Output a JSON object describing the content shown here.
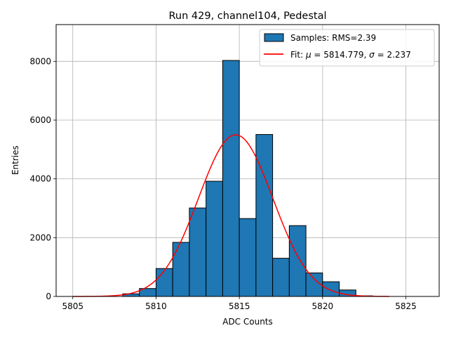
{
  "chart_data": {
    "type": "bar",
    "title": "Run 429, channel104, Pedestal",
    "xlabel": "ADC Counts",
    "ylabel": "Entries",
    "xlim": [
      5804,
      5827
    ],
    "ylim": [
      0,
      9250
    ],
    "xticks": [
      5805,
      5810,
      5815,
      5820,
      5825
    ],
    "yticks": [
      0,
      2000,
      4000,
      6000,
      8000
    ],
    "grid": true,
    "legend_position": "top-right",
    "histogram": {
      "name": "Samples: RMS=2.39",
      "color": "#1f77b4",
      "bin_width": 1,
      "bin_starts": [
        5808,
        5809,
        5810,
        5811,
        5812,
        5813,
        5814,
        5815,
        5816,
        5817,
        5818,
        5819,
        5820,
        5821,
        5822
      ],
      "values": [
        90,
        270,
        950,
        1840,
        3010,
        3920,
        8030,
        2650,
        5510,
        1300,
        2410,
        800,
        500,
        220,
        20
      ]
    },
    "fit": {
      "name_prefix": "Fit: ",
      "mu_label": "μ",
      "sigma_label": "σ",
      "mu": 5814.779,
      "sigma": 2.237,
      "amplitude": 5500,
      "x_range": [
        5805,
        5824
      ],
      "color": "#ff0000",
      "legend_text": "Fit: μ = 5814.779, σ = 2.237"
    }
  }
}
